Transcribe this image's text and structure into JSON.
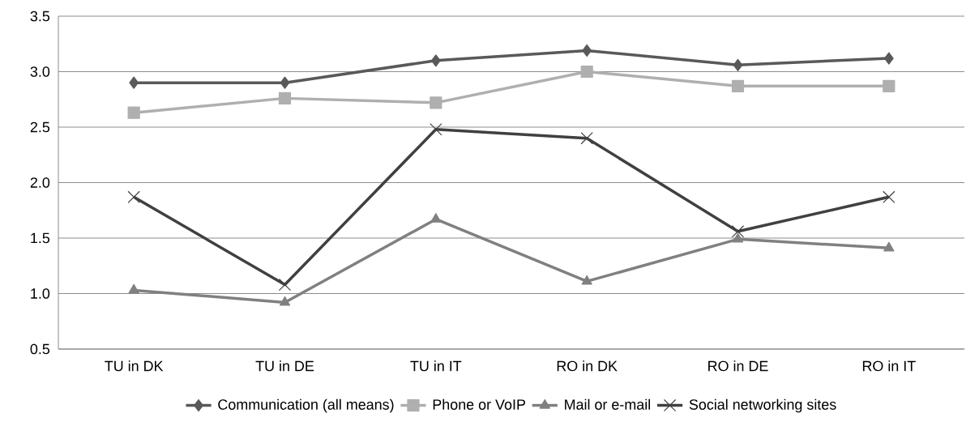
{
  "chart_data": {
    "type": "line",
    "categories": [
      "TU in DK",
      "TU in DE",
      "TU in IT",
      "RO in DK",
      "RO in DE",
      "RO in IT"
    ],
    "series": [
      {
        "name": "Communication (all means)",
        "color": "#595959",
        "marker": "diamond",
        "values": [
          2.9,
          2.9,
          3.1,
          3.19,
          3.06,
          3.12
        ]
      },
      {
        "name": "Phone or VoIP",
        "color": "#afafaf",
        "marker": "square",
        "values": [
          2.63,
          2.76,
          2.72,
          3.0,
          2.87,
          2.87
        ]
      },
      {
        "name": "Mail or e-mail",
        "color": "#808080",
        "marker": "triangle",
        "values": [
          1.03,
          0.92,
          1.67,
          1.11,
          1.49,
          1.41
        ]
      },
      {
        "name": "Social networking sites",
        "color": "#404040",
        "marker": "cross",
        "values": [
          1.87,
          1.08,
          2.48,
          2.4,
          1.56,
          1.87
        ]
      }
    ],
    "ylim": [
      0.5,
      3.5
    ],
    "yticks": [
      {
        "value": 0.5,
        "label": "0.5"
      },
      {
        "value": 1.0,
        "label": "1.0"
      },
      {
        "value": 1.5,
        "label": "1.5"
      },
      {
        "value": 2.0,
        "label": "2.0"
      },
      {
        "value": 2.5,
        "label": "2.5"
      },
      {
        "value": 3.0,
        "label": "3.0"
      },
      {
        "value": 3.5,
        "label": "3.5"
      }
    ],
    "grid": "y",
    "legend": "bottom",
    "line_style": "solid"
  }
}
